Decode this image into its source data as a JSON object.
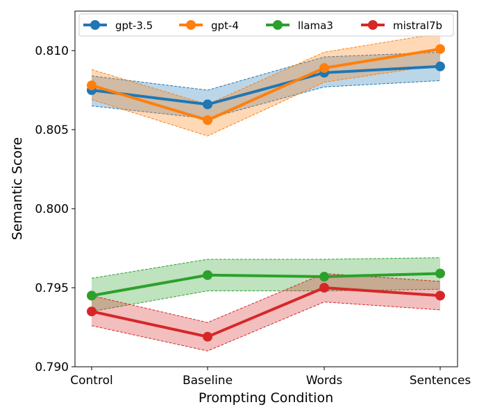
{
  "chart_data": {
    "type": "line",
    "xlabel": "Prompting Condition",
    "ylabel": "Semantic Score",
    "categories": [
      "Control",
      "Baseline",
      "Words",
      "Sentences"
    ],
    "ylim": [
      0.79,
      0.8125
    ],
    "yticks": [
      0.79,
      0.795,
      0.8,
      0.805,
      0.81
    ],
    "ytick_labels": [
      "0.790",
      "0.795",
      "0.800",
      "0.805",
      "0.810"
    ],
    "legend_position": "top",
    "grid": false,
    "series": [
      {
        "name": "gpt-3.5",
        "color": "#1f77b4",
        "values": [
          0.8075,
          0.8066,
          0.8086,
          0.809
        ],
        "lower": [
          0.8065,
          0.8057,
          0.8077,
          0.8081
        ],
        "upper": [
          0.8084,
          0.8075,
          0.8096,
          0.8099
        ]
      },
      {
        "name": "gpt-4",
        "color": "#ff7f0e",
        "values": [
          0.8078,
          0.8056,
          0.8089,
          0.8101
        ],
        "lower": [
          0.8069,
          0.8046,
          0.808,
          0.8091
        ],
        "upper": [
          0.8088,
          0.8066,
          0.8099,
          0.8111
        ]
      },
      {
        "name": "llama3",
        "color": "#2ca02c",
        "values": [
          0.7945,
          0.7958,
          0.7957,
          0.7959
        ],
        "lower": [
          0.7935,
          0.7948,
          0.7948,
          0.7949
        ],
        "upper": [
          0.7956,
          0.7968,
          0.7968,
          0.7969
        ]
      },
      {
        "name": "mistral7b",
        "color": "#d62728",
        "values": [
          0.7935,
          0.7919,
          0.795,
          0.7945
        ],
        "lower": [
          0.7926,
          0.791,
          0.7941,
          0.7936
        ],
        "upper": [
          0.7945,
          0.7928,
          0.7959,
          0.7954
        ]
      }
    ]
  }
}
